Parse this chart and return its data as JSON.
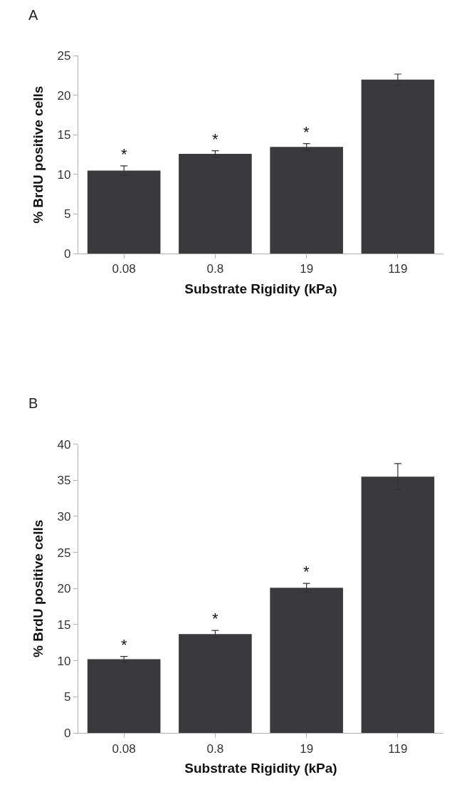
{
  "chart_data": [
    {
      "type": "bar",
      "title": "A",
      "xlabel": "Substrate Rigidity (kPa)",
      "ylabel": "% BrdU positive cells",
      "categories": [
        "0.08",
        "0.8",
        "19",
        "119"
      ],
      "values": [
        10.5,
        12.6,
        13.5,
        22.0
      ],
      "errors": [
        0.6,
        0.4,
        0.4,
        0.7
      ],
      "color": "#3a3a3c",
      "ylim": [
        0,
        25
      ],
      "yticks": [
        0,
        5,
        10,
        15,
        20,
        25
      ],
      "annotations": [
        {
          "text": "*",
          "x": "0.08",
          "y": 10.5
        },
        {
          "text": "*",
          "x": "0.8",
          "y": 12.6
        },
        {
          "text": "*",
          "x": "19",
          "y": 13.5
        }
      ]
    },
    {
      "type": "bar",
      "title": "B",
      "xlabel": "Substrate Rigidity (kPa)",
      "ylabel": "% BrdU positive cells",
      "categories": [
        "0.08",
        "0.8",
        "19",
        "119"
      ],
      "values": [
        10.2,
        13.7,
        20.1,
        35.5
      ],
      "errors": [
        0.4,
        0.5,
        0.6,
        1.8
      ],
      "color": "#3a3a3c",
      "ylim": [
        0,
        40
      ],
      "yticks": [
        0,
        5,
        10,
        15,
        20,
        25,
        30,
        35,
        40
      ],
      "annotations": [
        {
          "text": "*",
          "x": "0.08",
          "y": 10.2
        },
        {
          "text": "*",
          "x": "0.8",
          "y": 13.7
        },
        {
          "text": "*",
          "x": "19",
          "y": 20.1
        }
      ]
    }
  ]
}
